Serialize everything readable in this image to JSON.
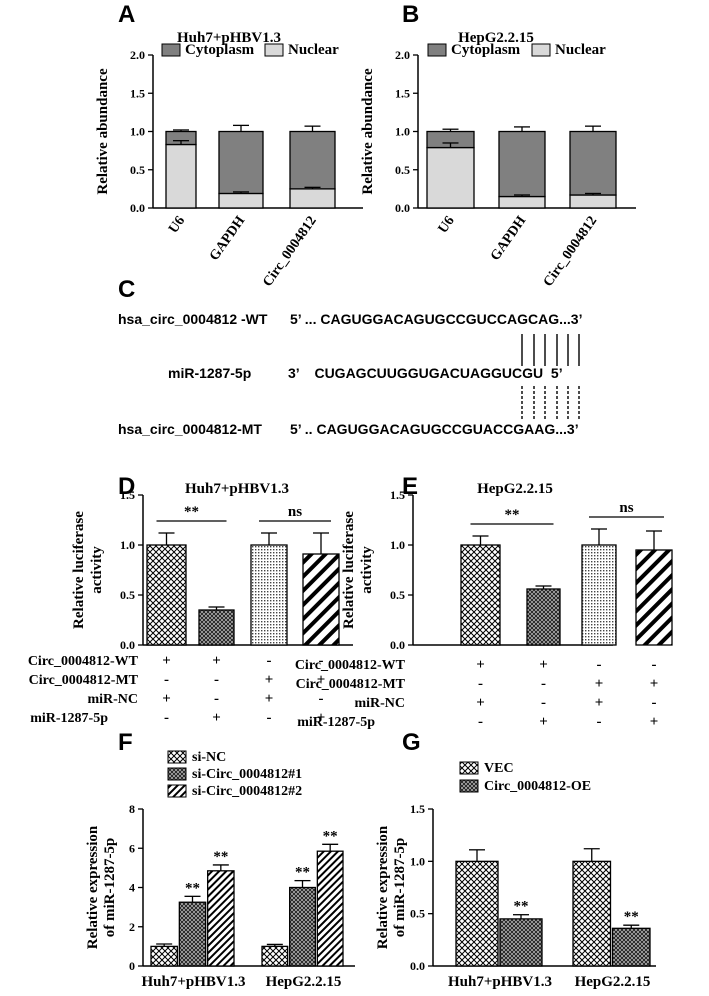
{
  "panels": {
    "A": "A",
    "B": "B",
    "C": "C",
    "D": "D",
    "E": "E",
    "F": "F",
    "G": "G"
  },
  "chart_data": [
    {
      "panel": "A",
      "type": "bar",
      "stacked": true,
      "title": "Huh7+pHBV1.3",
      "ylabel": "Relative abundance",
      "ylim": [
        0,
        2.0
      ],
      "yticks": [
        "0.0",
        "0.5",
        "1.0",
        "1.5",
        "2.0"
      ],
      "categories": [
        "U6",
        "GAPDH",
        "Circ_0004812"
      ],
      "series": [
        {
          "name": "Nuclear",
          "values": [
            0.83,
            0.19,
            0.25
          ],
          "errors": [
            0.05,
            0.02,
            0.02
          ],
          "color": "#d9d9d9"
        },
        {
          "name": "Cytoplasm",
          "values": [
            0.17,
            0.81,
            0.75
          ],
          "errors": [
            0.02,
            0.08,
            0.07
          ],
          "color": "#808080"
        }
      ],
      "legend_position": "top"
    },
    {
      "panel": "B",
      "type": "bar",
      "stacked": true,
      "title": "HepG2.2.15",
      "ylabel": "Relative abundance",
      "ylim": [
        0,
        2.0
      ],
      "yticks": [
        "0.0",
        "0.5",
        "1.0",
        "1.5",
        "2.0"
      ],
      "categories": [
        "U6",
        "GAPDH",
        "Circ_0004812"
      ],
      "series": [
        {
          "name": "Nuclear",
          "values": [
            0.79,
            0.15,
            0.17
          ],
          "errors": [
            0.06,
            0.02,
            0.02
          ],
          "color": "#d9d9d9"
        },
        {
          "name": "Cytoplasm",
          "values": [
            0.21,
            0.85,
            0.83
          ],
          "errors": [
            0.03,
            0.06,
            0.07
          ],
          "color": "#808080"
        }
      ],
      "legend_position": "top"
    },
    {
      "panel": "D",
      "type": "bar",
      "title": "Huh7+pHBV1.3",
      "ylabel": "Relative luciferase activity",
      "ylim": [
        0,
        1.5
      ],
      "yticks": [
        "0.0",
        "0.5",
        "1.0",
        "1.5"
      ],
      "values": [
        1.0,
        0.35,
        1.0,
        0.91
      ],
      "errors": [
        0.12,
        0.03,
        0.12,
        0.21
      ],
      "patterns": [
        "crosshatch",
        "crosshatch-dense",
        "dots",
        "diag-bold"
      ],
      "annotations": [
        {
          "label": "**",
          "between": [
            0,
            1
          ]
        },
        {
          "label": "ns",
          "between": [
            2,
            3
          ]
        }
      ],
      "conditions": [
        {
          "label": "Circ_0004812-WT",
          "signs": [
            "+",
            "+",
            "-",
            "-"
          ]
        },
        {
          "label": "Circ_0004812-MT",
          "signs": [
            "-",
            "-",
            "+",
            "+"
          ]
        },
        {
          "label": "miR-NC",
          "signs": [
            "+",
            "-",
            "+",
            "-"
          ]
        },
        {
          "label": "miR-1287-5p",
          "signs": [
            "-",
            "+",
            "-",
            "+"
          ]
        }
      ]
    },
    {
      "panel": "E",
      "type": "bar",
      "title": "HepG2.2.15",
      "ylabel": "Relative luciferase activity",
      "ylim": [
        0,
        1.5
      ],
      "yticks": [
        "0.0",
        "0.5",
        "1.0",
        "1.5"
      ],
      "values": [
        1.0,
        0.56,
        1.0,
        0.95
      ],
      "errors": [
        0.09,
        0.03,
        0.16,
        0.19
      ],
      "patterns": [
        "crosshatch",
        "crosshatch-dense",
        "dots",
        "diag-bold"
      ],
      "annotations": [
        {
          "label": "**",
          "between": [
            0,
            1
          ]
        },
        {
          "label": "ns",
          "between": [
            2,
            3
          ]
        }
      ],
      "conditions": [
        {
          "label": "Circ_0004812-WT",
          "signs": [
            "+",
            "+",
            "-",
            "-"
          ]
        },
        {
          "label": "Circ_0004812-MT",
          "signs": [
            "-",
            "-",
            "+",
            "+"
          ]
        },
        {
          "label": "miR-NC",
          "signs": [
            "+",
            "-",
            "+",
            "-"
          ]
        },
        {
          "label": "miR-1287-5p",
          "signs": [
            "-",
            "+",
            "-",
            "+"
          ]
        }
      ]
    },
    {
      "panel": "F",
      "type": "bar",
      "ylabel": "Relative expression of miR-1287-5p",
      "ylim": [
        0,
        8
      ],
      "yticks": [
        "0",
        "2",
        "4",
        "6",
        "8"
      ],
      "categories": [
        "Huh7+pHBV1.3",
        "HepG2.2.15"
      ],
      "series": [
        {
          "name": "si-NC",
          "values": [
            1.0,
            1.0
          ],
          "errors": [
            0.12,
            0.1
          ],
          "pattern": "crosshatch"
        },
        {
          "name": "si-Circ_0004812#1",
          "values": [
            3.25,
            4.0
          ],
          "errors": [
            0.3,
            0.35
          ],
          "pattern": "crosshatch-dense",
          "sig": [
            "**",
            "**"
          ]
        },
        {
          "name": "si-Circ_0004812#2",
          "values": [
            4.85,
            5.85
          ],
          "errors": [
            0.3,
            0.35
          ],
          "pattern": "diag",
          "sig": [
            "**",
            "**"
          ]
        }
      ],
      "legend_position": "top-left"
    },
    {
      "panel": "G",
      "type": "bar",
      "ylabel": "Relative expression of miR-1287-5p",
      "ylim": [
        0,
        1.5
      ],
      "yticks": [
        "0.0",
        "0.5",
        "1.0",
        "1.5"
      ],
      "categories": [
        "Huh7+pHBV1.3",
        "HepG2.2.15"
      ],
      "series": [
        {
          "name": "VEC",
          "values": [
            1.0,
            1.0
          ],
          "errors": [
            0.11,
            0.12
          ],
          "pattern": "crosshatch"
        },
        {
          "name": "Circ_0004812-OE",
          "values": [
            0.45,
            0.36
          ],
          "errors": [
            0.04,
            0.03
          ],
          "pattern": "crosshatch-dense",
          "sig": [
            "**",
            "**"
          ]
        }
      ],
      "legend_position": "top-left"
    }
  ],
  "sequences": {
    "wt_label": "hsa_circ_0004812 -WT",
    "wt_seq": "5’ ... CAGUGGACAGUGCCGUCCAGCAG...3’",
    "mir_label": "miR-1287-5p",
    "mir_seq": "3’    CUGAGCUUGGUGACUAGGUCGU  5’",
    "mt_label": "hsa_circ_0004812-MT",
    "mt_seq": "5’ .. CAGUGGACAGUGCCGUACCGAAG...3’"
  }
}
